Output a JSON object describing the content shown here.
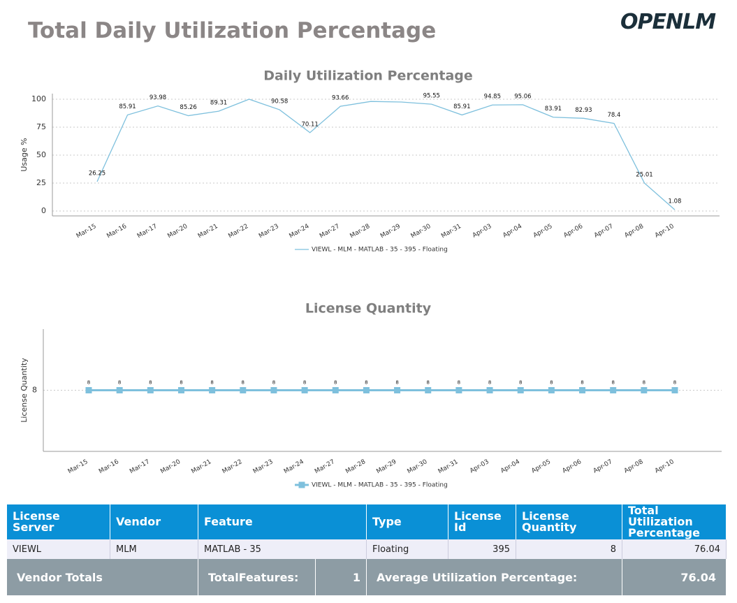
{
  "header": {
    "title": "Total Daily Utilization Percentage",
    "logo": "OPENLM"
  },
  "chart_data": [
    {
      "type": "line",
      "title": "Daily Utilization Percentage",
      "y_label": "Usage %",
      "categories": [
        "Mar-15",
        "Mar-16",
        "Mar-17",
        "Mar-20",
        "Mar-21",
        "Mar-22",
        "Mar-23",
        "Mar-24",
        "Mar-27",
        "Mar-28",
        "Mar-29",
        "Mar-30",
        "Mar-31",
        "Apr-03",
        "Apr-04",
        "Apr-05",
        "Apr-06",
        "Apr-07",
        "Apr-08",
        "Apr-10"
      ],
      "series": [
        {
          "name": "VIEWL - MLM - MATLAB - 35 - 395 - Floating",
          "color": "#7ec0dd",
          "values": [
            26.25,
            85.91,
            93.98,
            85.26,
            89.31,
            100,
            90.58,
            70.11,
            93.66,
            98,
            97.5,
            95.55,
            85.91,
            94.85,
            95.06,
            83.91,
            82.93,
            78.4,
            25.01,
            1.08
          ],
          "value_labels": [
            "26.25",
            "85.91",
            "93.98",
            "85.26",
            "89.31",
            null,
            "90.58",
            "70.11",
            "93.66",
            null,
            null,
            "95.55",
            "85.91",
            "94.85",
            "95.06",
            "83.91",
            "82.93",
            "78.4",
            "25.01",
            "1.08"
          ]
        }
      ],
      "ylim": [
        -4.4,
        105
      ],
      "yticks": [
        0,
        25,
        50,
        75,
        100
      ],
      "grid": true,
      "markers": false
    },
    {
      "type": "line",
      "title": "License Quantity",
      "y_label": "License Quantity",
      "categories": [
        "Mar-15",
        "Mar-16",
        "Mar-17",
        "Mar-20",
        "Mar-21",
        "Mar-22",
        "Mar-23",
        "Mar-24",
        "Mar-27",
        "Mar-28",
        "Mar-29",
        "Mar-30",
        "Mar-31",
        "Apr-03",
        "Apr-04",
        "Apr-05",
        "Apr-06",
        "Apr-07",
        "Apr-08",
        "Apr-10"
      ],
      "series": [
        {
          "name": "VIEWL - MLM - MATLAB - 35 - 395 - Floating",
          "color": "#7ec0dd",
          "values": [
            8,
            8,
            8,
            8,
            8,
            8,
            8,
            8,
            8,
            8,
            8,
            8,
            8,
            8,
            8,
            8,
            8,
            8,
            8,
            8
          ],
          "value_labels": [
            "8",
            "8",
            "8",
            "8",
            "8",
            "8",
            "8",
            "8",
            "8",
            "8",
            "8",
            "8",
            "8",
            "8",
            "8",
            "8",
            "8",
            "8",
            "8",
            "8"
          ]
        }
      ],
      "ylim": [
        7,
        9
      ],
      "yticks": [
        8
      ],
      "grid": true,
      "markers": true
    }
  ],
  "table": {
    "columns": [
      "License Server",
      "Vendor",
      "Feature",
      "Type",
      "License Id",
      "License Quantity",
      "Total Utilization Percentage"
    ],
    "rows": [
      [
        "VIEWL",
        "MLM",
        "MATLAB - 35",
        "Floating",
        "395",
        "8",
        "76.04"
      ]
    ],
    "totals": [
      "Vendor Totals",
      "TotalFeatures:",
      "1",
      "Average Utilization Percentage:",
      "76.04"
    ]
  }
}
